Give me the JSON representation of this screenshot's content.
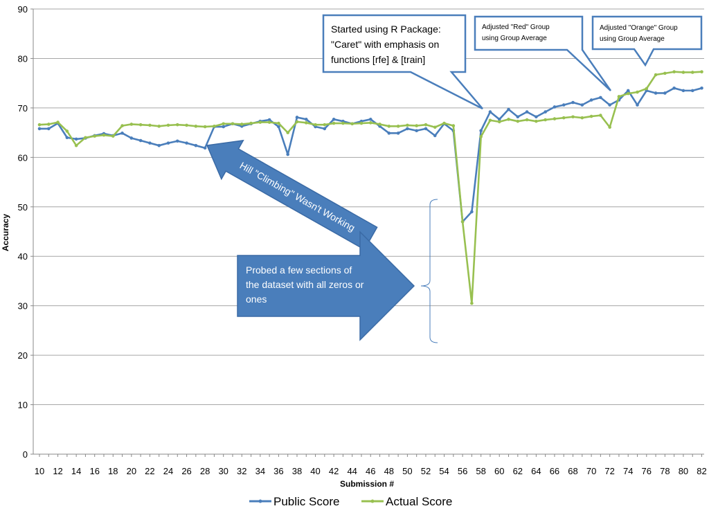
{
  "chart_data": {
    "type": "line",
    "xlabel": "Submission #",
    "ylabel": "Accuracy",
    "ylim": [
      0,
      90
    ],
    "xlim": [
      10,
      82
    ],
    "yticks": [
      0,
      10,
      20,
      30,
      40,
      50,
      60,
      70,
      80,
      90
    ],
    "xticks": [
      10,
      12,
      14,
      16,
      18,
      20,
      22,
      24,
      26,
      28,
      30,
      32,
      34,
      36,
      38,
      40,
      42,
      44,
      46,
      48,
      50,
      52,
      54,
      56,
      58,
      60,
      62,
      64,
      66,
      68,
      70,
      72,
      74,
      76,
      78,
      80,
      82
    ],
    "grid": "horizontal",
    "legend_position": "bottom",
    "x": [
      10,
      11,
      12,
      13,
      14,
      15,
      16,
      17,
      18,
      19,
      20,
      21,
      22,
      23,
      24,
      25,
      26,
      27,
      28,
      29,
      30,
      31,
      32,
      33,
      34,
      35,
      36,
      37,
      38,
      39,
      40,
      41,
      42,
      43,
      44,
      45,
      46,
      47,
      48,
      49,
      50,
      51,
      52,
      53,
      54,
      55,
      56,
      57,
      58,
      59,
      60,
      61,
      62,
      63,
      64,
      65,
      66,
      67,
      68,
      69,
      70,
      71,
      72,
      73,
      74,
      75,
      76,
      77,
      78,
      79,
      80,
      81,
      82
    ],
    "series": [
      {
        "name": "Public Score",
        "color": "#4a7ebb",
        "values": [
          65.8,
          65.8,
          66.9,
          64.0,
          63.7,
          63.9,
          64.4,
          64.8,
          64.4,
          64.9,
          63.9,
          63.4,
          62.9,
          62.4,
          62.9,
          63.3,
          62.9,
          62.4,
          61.9,
          66.2,
          66.2,
          66.8,
          66.3,
          66.8,
          67.3,
          67.6,
          66.2,
          60.6,
          68.1,
          67.7,
          66.2,
          65.8,
          67.7,
          67.3,
          66.8,
          67.3,
          67.7,
          66.3,
          64.9,
          64.9,
          65.8,
          65.4,
          65.8,
          64.4,
          66.8,
          65.4,
          47.0,
          49.0,
          65.4,
          69.2,
          67.7,
          69.7,
          68.2,
          69.2,
          68.2,
          69.2,
          70.2,
          70.6,
          71.1,
          70.6,
          71.6,
          72.1,
          70.6,
          71.6,
          73.5,
          70.6,
          73.5,
          73.0,
          73.0,
          74.0,
          73.5,
          73.5,
          74.0
        ]
      },
      {
        "name": "Actual Score",
        "color": "#98c050",
        "values": [
          66.6,
          66.7,
          67.1,
          65.3,
          62.4,
          64.0,
          64.3,
          64.5,
          64.3,
          66.4,
          66.7,
          66.6,
          66.5,
          66.3,
          66.5,
          66.6,
          66.5,
          66.3,
          66.2,
          66.3,
          66.8,
          66.8,
          66.7,
          66.9,
          67.1,
          67.1,
          66.9,
          65.0,
          67.2,
          67.0,
          66.6,
          66.6,
          66.9,
          66.9,
          66.8,
          66.9,
          67.0,
          66.7,
          66.3,
          66.3,
          66.5,
          66.4,
          66.6,
          66.1,
          66.9,
          66.4,
          47.0,
          30.5,
          64.2,
          67.5,
          67.2,
          67.7,
          67.3,
          67.6,
          67.3,
          67.6,
          67.8,
          68.0,
          68.2,
          68.0,
          68.3,
          68.5,
          66.1,
          72.3,
          72.9,
          73.2,
          73.9,
          76.7,
          77.0,
          77.3,
          77.2,
          77.2,
          77.3
        ]
      }
    ],
    "annotations": {
      "caret": [
        "Started using R Package:",
        "\"Caret\" with emphasis on",
        "functions  [rfe] & [train]"
      ],
      "red": [
        "Adjusted \"Red\" Group",
        "using Group Average"
      ],
      "orange": [
        "Adjusted \"Orange\" Group",
        "using Group Average"
      ],
      "hill": "Hill \"Climbing\" Wasn't Working",
      "probe": [
        "Probed a few sections of",
        "the dataset with all zeros or",
        "ones"
      ]
    }
  }
}
